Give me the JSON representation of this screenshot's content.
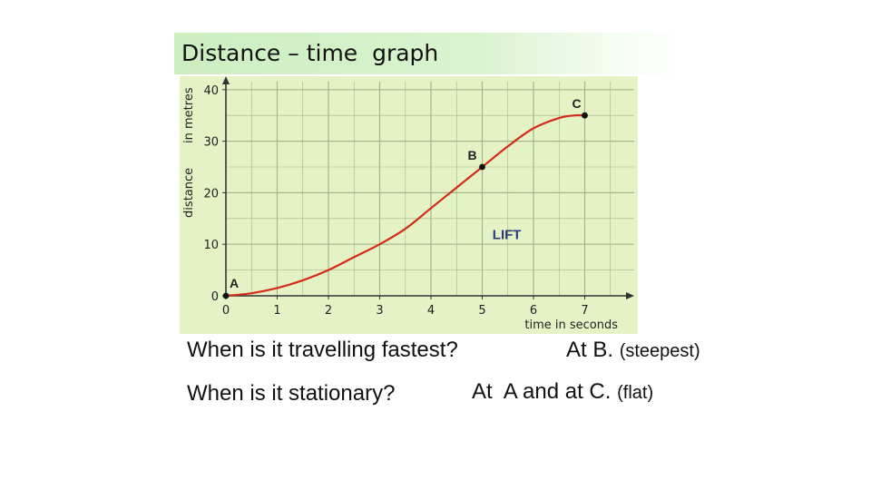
{
  "slide": {
    "title": "Distance – time  graph",
    "q1": "When is it travelling fastest?",
    "a1_main": "At B. ",
    "a1_note": "(steepest)",
    "q2": "When is it stationary?",
    "a2_main": "At  A and at C. ",
    "a2_note": "(flat)"
  },
  "chart_data": {
    "type": "line",
    "title": "",
    "xlabel": "time in seconds",
    "ylabel": "distance",
    "ylabel_unit": "in metres",
    "xlim": [
      0,
      8
    ],
    "ylim": [
      0,
      40
    ],
    "xticks": [
      0,
      1,
      2,
      3,
      4,
      5,
      6,
      7
    ],
    "yticks": [
      0,
      10,
      20,
      30,
      40
    ],
    "grid": true,
    "series": [
      {
        "name": "LIFT",
        "color": "#d42a1a",
        "x": [
          0,
          0.5,
          1,
          1.5,
          2,
          2.5,
          3,
          3.5,
          4,
          4.5,
          5,
          5.5,
          6,
          6.5,
          6.8,
          7
        ],
        "y": [
          0,
          0.5,
          1.5,
          3,
          5,
          7.5,
          10,
          13,
          17,
          21,
          25,
          29,
          32.5,
          34.5,
          35,
          35
        ]
      }
    ],
    "points": [
      {
        "label": "A",
        "x": 0,
        "y": 0
      },
      {
        "label": "B",
        "x": 5,
        "y": 25
      },
      {
        "label": "C",
        "x": 7,
        "y": 35
      }
    ],
    "annotations": [
      {
        "text": "LIFT",
        "x": 5.2,
        "y": 11
      }
    ],
    "colors": {
      "background": "#e5f2c6",
      "grid": "#a7b58b",
      "line": "#d42a1a",
      "axis": "#333333"
    }
  }
}
